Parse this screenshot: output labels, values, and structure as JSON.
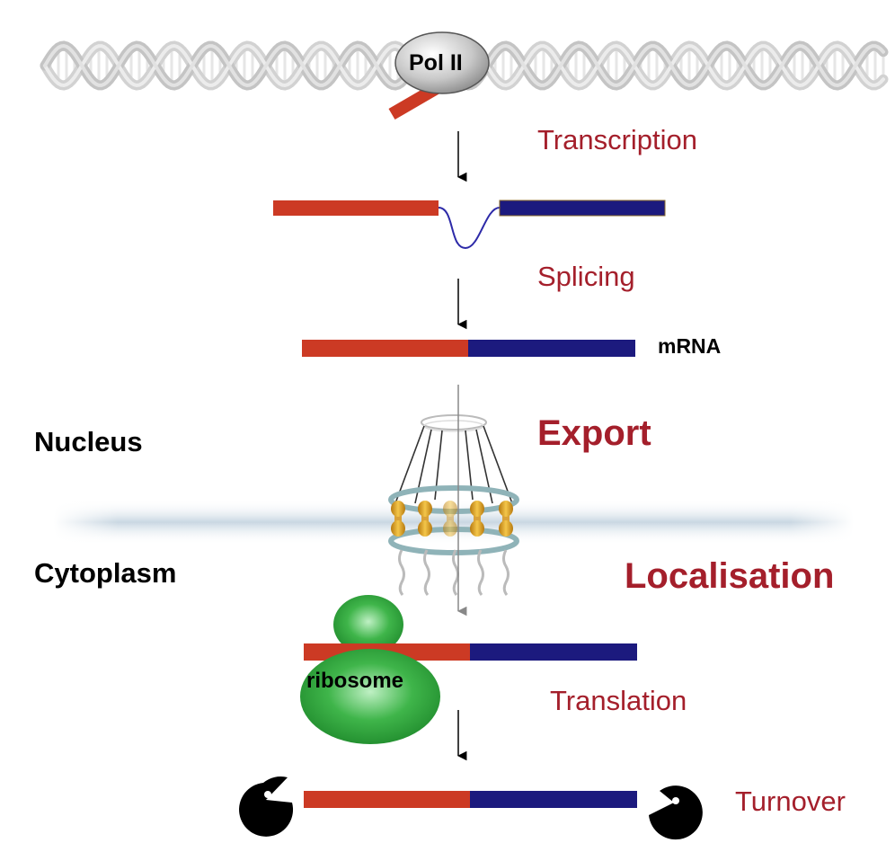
{
  "labels": {
    "pol_ii": "Pol II",
    "transcription": "Transcription",
    "splicing": "Splicing",
    "mrna": "mRNA",
    "nucleus": "Nucleus",
    "export": "Export",
    "cytoplasm": "Cytoplasm",
    "localisation": "Localisation",
    "ribosome": "ribosome",
    "translation": "Translation",
    "turnover": "Turnover"
  },
  "colors": {
    "exon_5prime": "#cc3a24",
    "exon_3prime": "#1c1a7e",
    "intron": "#2d2aa8",
    "label_red": "#a41f2b",
    "ribosome": "#2ea83a",
    "membrane": "#ccd9e3",
    "pore_gold": "#e0a826"
  }
}
